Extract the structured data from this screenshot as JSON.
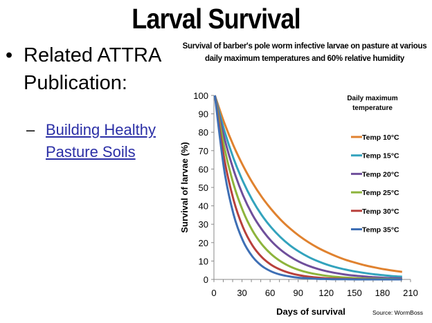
{
  "slide": {
    "title": "Larval Survival",
    "bullet": "Related ATTRA Publication:",
    "sub_dash": "–",
    "link": "Building Healthy Pasture Soils",
    "bullet_glyph": "•"
  },
  "chart_data": {
    "type": "line",
    "title": "Survival of barber's pole worm infective larvae on pasture at various daily maximum temperatures and 60% relative humidity",
    "xlabel": "Days of survival",
    "ylabel": "Survival of larvae (%)",
    "xlim": [
      0,
      210
    ],
    "ylim": [
      0,
      100
    ],
    "xticks": [
      0,
      30,
      60,
      90,
      120,
      150,
      180,
      210
    ],
    "yticks": [
      0,
      10,
      20,
      30,
      40,
      50,
      60,
      70,
      80,
      90,
      100
    ],
    "legend_title": "Daily maximum temperature",
    "legend_position": "right",
    "source": "Source: WormBoss",
    "x": [
      0,
      10,
      20,
      30,
      40,
      50,
      60,
      70,
      80,
      90,
      100,
      110,
      120,
      130,
      140,
      150,
      160,
      170,
      180,
      190,
      200
    ],
    "series": [
      {
        "name": "Temp 10°C",
        "color": "#e0822f",
        "values": [
          100,
          85.2,
          72.6,
          61.9,
          52.7,
          44.9,
          38.3,
          32.6,
          27.8,
          23.7,
          20.2,
          17.2,
          14.7,
          12.5,
          10.6,
          9.1,
          7.7,
          6.6,
          5.6,
          4.8,
          4.1
        ]
      },
      {
        "name": "Temp 15°C",
        "color": "#33a3bd",
        "values": [
          100,
          81.1,
          65.7,
          53.3,
          43.2,
          35.0,
          28.4,
          23.0,
          18.6,
          15.1,
          12.2,
          9.9,
          8.0,
          6.5,
          5.3,
          4.3,
          3.5,
          2.8,
          2.3,
          1.8,
          1.5
        ]
      },
      {
        "name": "Temp 20°C",
        "color": "#6f4f9b",
        "values": [
          100,
          77.1,
          59.5,
          45.8,
          35.3,
          27.3,
          21.0,
          16.2,
          12.5,
          9.6,
          7.4,
          5.7,
          4.4,
          3.4,
          2.6,
          2.0,
          1.6,
          1.2,
          0.9,
          0.7,
          0.6
        ]
      },
      {
        "name": "Temp 25°C",
        "color": "#8db43c",
        "values": [
          100,
          71.9,
          51.7,
          37.2,
          26.7,
          19.2,
          13.8,
          9.9,
          7.1,
          5.1,
          3.7,
          2.7,
          1.9,
          1.4,
          1.0,
          0.7,
          0.5,
          0.4,
          0.3,
          0.2,
          0.1
        ]
      },
      {
        "name": "Temp 30°C",
        "color": "#b8403c",
        "values": [
          100,
          65.7,
          43.2,
          28.4,
          18.6,
          12.2,
          8.0,
          5.3,
          3.5,
          2.3,
          1.5,
          1.0,
          0.6,
          0.4,
          0.3,
          0.2,
          0.1,
          0.1,
          0,
          0,
          0
        ]
      },
      {
        "name": "Temp 35°C",
        "color": "#3e6fb5",
        "values": [
          100,
          59.5,
          35.3,
          21.0,
          12.5,
          7.4,
          4.4,
          2.6,
          1.6,
          0.9,
          0.6,
          0.3,
          0.2,
          0.1,
          0.1,
          0,
          0,
          0,
          0,
          0,
          0
        ]
      }
    ]
  }
}
